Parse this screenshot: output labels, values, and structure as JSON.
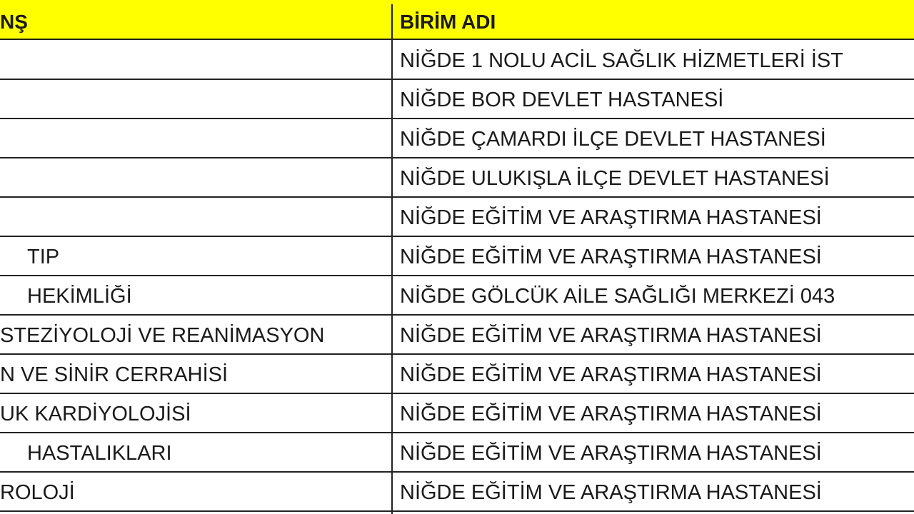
{
  "header": {
    "col1": "NŞ",
    "col2": "BİRİM ADI"
  },
  "header_fill_color": "#ffff00",
  "rows": [
    {
      "brans": "",
      "birim": "NİĞDE 1 NOLU ACİL SAĞLIK HİZMETLERİ İST"
    },
    {
      "brans": "",
      "birim": "NİĞDE BOR DEVLET HASTANESİ"
    },
    {
      "brans": "",
      "birim": "NİĞDE ÇAMARDI İLÇE DEVLET HASTANESİ"
    },
    {
      "brans": "",
      "birim": "NİĞDE ULUKIŞLA İLÇE DEVLET HASTANESİ"
    },
    {
      "brans": "",
      "birim": "NİĞDE EĞİTİM VE ARAŞTIRMA HASTANESİ"
    },
    {
      "brans": "TIP",
      "birim": "NİĞDE EĞİTİM VE ARAŞTIRMA HASTANESİ"
    },
    {
      "brans": "HEKİMLİĞİ",
      "birim": "NİĞDE GÖLCÜK AİLE SAĞLIĞI MERKEZİ 043"
    },
    {
      "brans": "STEZİYOLOJİ VE REANİMASYON",
      "birim": "NİĞDE EĞİTİM VE ARAŞTIRMA HASTANESİ"
    },
    {
      "brans": "N VE SİNİR CERRAHİSİ",
      "birim": "NİĞDE EĞİTİM VE ARAŞTIRMA HASTANESİ"
    },
    {
      "brans": "UK KARDİYOLOJİSİ",
      "birim": "NİĞDE EĞİTİM VE ARAŞTIRMA HASTANESİ"
    },
    {
      "brans": "HASTALIKLARI",
      "birim": "NİĞDE EĞİTİM VE ARAŞTIRMA HASTANESİ"
    },
    {
      "brans": "ROLOJİ",
      "birim": "NİĞDE EĞİTİM VE ARAŞTIRMA HASTANESİ"
    }
  ]
}
